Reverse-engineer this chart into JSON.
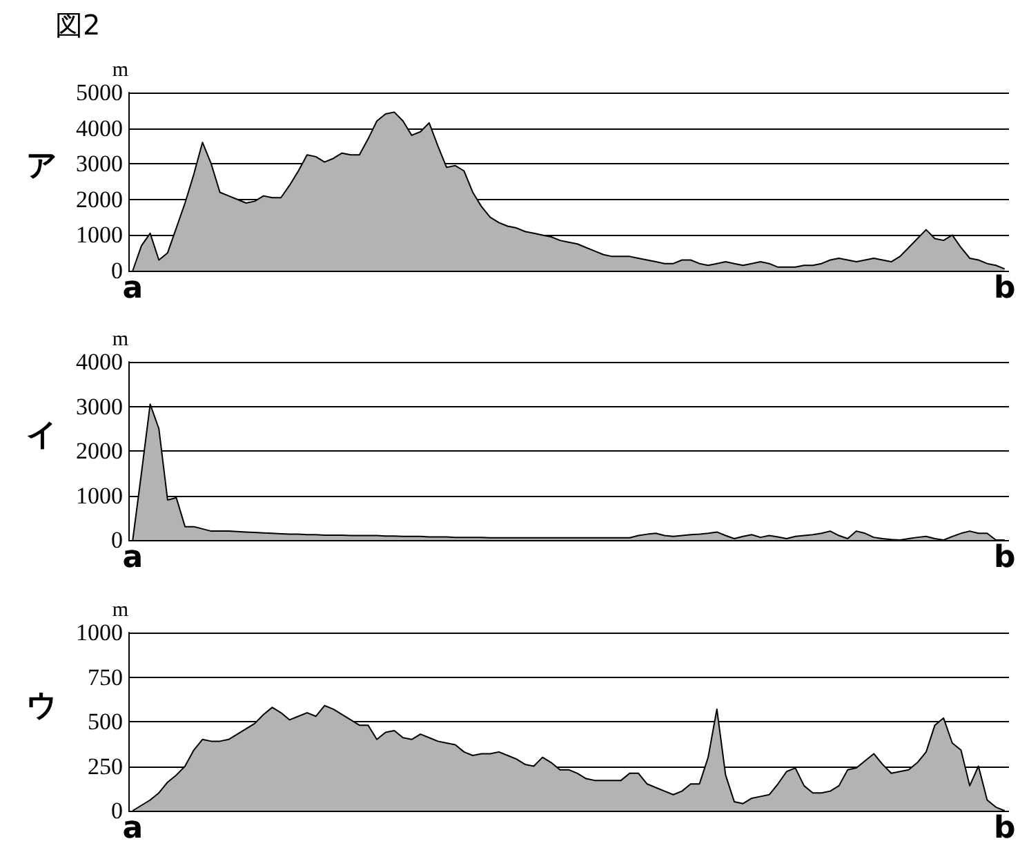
{
  "chart_data": [
    {
      "type": "area",
      "title": "ア",
      "ylabel": "m",
      "annotations": [
        "図2"
      ],
      "color": "#b3b3b3",
      "grid": "y",
      "categories": [
        "a",
        null,
        null,
        null,
        null,
        null,
        null,
        null,
        null,
        null,
        null,
        null,
        null,
        null,
        null,
        null,
        null,
        null,
        null,
        null,
        null,
        null,
        null,
        null,
        null,
        null,
        null,
        null,
        null,
        null,
        null,
        null,
        null,
        null,
        null,
        null,
        null,
        null,
        null,
        null,
        null,
        null,
        null,
        null,
        null,
        null,
        null,
        null,
        null,
        null,
        null,
        null,
        null,
        null,
        null,
        null,
        null,
        null,
        null,
        null,
        null,
        null,
        null,
        null,
        null,
        null,
        null,
        null,
        null,
        null,
        null,
        null,
        null,
        null,
        null,
        null,
        null,
        null,
        null,
        null,
        null,
        null,
        null,
        null,
        null,
        null,
        null,
        null,
        null,
        null,
        null,
        null,
        null,
        null,
        null,
        null,
        null,
        null,
        null,
        null,
        "b"
      ],
      "ylim": [
        0,
        5000
      ],
      "yticks": [
        0,
        1000,
        2000,
        3000,
        4000,
        5000
      ],
      "values": [
        0,
        700,
        1050,
        300,
        500,
        1200,
        1900,
        2700,
        3600,
        3000,
        2200,
        2100,
        2000,
        1900,
        1950,
        2100,
        2050,
        2050,
        2400,
        2800,
        3250,
        3200,
        3050,
        3150,
        3300,
        3250,
        3250,
        3700,
        4200,
        4400,
        4450,
        4200,
        3800,
        3900,
        4150,
        3500,
        2900,
        2950,
        2800,
        2200,
        1800,
        1500,
        1350,
        1250,
        1200,
        1100,
        1050,
        1000,
        950,
        850,
        800,
        750,
        650,
        550,
        450,
        400,
        400,
        400,
        350,
        300,
        250,
        200,
        200,
        300,
        300,
        200,
        150,
        200,
        250,
        200,
        150,
        200,
        250,
        200,
        100,
        100,
        100,
        150,
        150,
        200,
        300,
        350,
        300,
        250,
        300,
        350,
        300,
        250,
        400,
        650,
        900,
        1150,
        900,
        850,
        1000,
        650,
        350,
        300,
        200,
        150,
        50
      ]
    },
    {
      "type": "area",
      "title": "イ",
      "ylabel": "m",
      "color": "#b3b3b3",
      "grid": "y",
      "categories": [
        "a",
        null,
        null,
        null,
        null,
        null,
        null,
        null,
        null,
        null,
        null,
        null,
        null,
        null,
        null,
        null,
        null,
        null,
        null,
        null,
        null,
        null,
        null,
        null,
        null,
        null,
        null,
        null,
        null,
        null,
        null,
        null,
        null,
        null,
        null,
        null,
        null,
        null,
        null,
        null,
        null,
        null,
        null,
        null,
        null,
        null,
        null,
        null,
        null,
        null,
        null,
        null,
        null,
        null,
        null,
        null,
        null,
        null,
        null,
        null,
        null,
        null,
        null,
        null,
        null,
        null,
        null,
        null,
        null,
        null,
        null,
        null,
        null,
        null,
        null,
        null,
        null,
        null,
        null,
        null,
        null,
        null,
        null,
        null,
        null,
        null,
        null,
        null,
        null,
        null,
        null,
        null,
        null,
        null,
        null,
        null,
        null,
        null,
        null,
        null,
        "b"
      ],
      "ylim": [
        0,
        4000
      ],
      "yticks": [
        0,
        1000,
        2000,
        3000,
        4000
      ],
      "values": [
        0,
        1500,
        3050,
        2500,
        900,
        950,
        300,
        300,
        250,
        200,
        200,
        200,
        190,
        180,
        170,
        160,
        150,
        140,
        130,
        130,
        120,
        120,
        110,
        110,
        110,
        100,
        100,
        100,
        100,
        90,
        90,
        80,
        80,
        80,
        70,
        70,
        70,
        60,
        60,
        60,
        60,
        50,
        50,
        50,
        50,
        50,
        50,
        50,
        50,
        50,
        50,
        50,
        50,
        50,
        50,
        50,
        50,
        50,
        100,
        130,
        150,
        100,
        80,
        100,
        120,
        130,
        150,
        180,
        100,
        30,
        80,
        120,
        60,
        100,
        70,
        30,
        80,
        100,
        120,
        150,
        200,
        100,
        30,
        200,
        150,
        60,
        30,
        10,
        0,
        30,
        60,
        80,
        30,
        0,
        80,
        150,
        200,
        150,
        150,
        0,
        0
      ]
    },
    {
      "type": "area",
      "title": "ウ",
      "ylabel": "m",
      "color": "#b3b3b3",
      "grid": "y",
      "categories": [
        "a",
        null,
        null,
        null,
        null,
        null,
        null,
        null,
        null,
        null,
        null,
        null,
        null,
        null,
        null,
        null,
        null,
        null,
        null,
        null,
        null,
        null,
        null,
        null,
        null,
        null,
        null,
        null,
        null,
        null,
        null,
        null,
        null,
        null,
        null,
        null,
        null,
        null,
        null,
        null,
        null,
        null,
        null,
        null,
        null,
        null,
        null,
        null,
        null,
        null,
        null,
        null,
        null,
        null,
        null,
        null,
        null,
        null,
        null,
        null,
        null,
        null,
        null,
        null,
        null,
        null,
        null,
        null,
        null,
        null,
        null,
        null,
        null,
        null,
        null,
        null,
        null,
        null,
        null,
        null,
        null,
        null,
        null,
        null,
        null,
        null,
        null,
        null,
        null,
        null,
        null,
        null,
        null,
        null,
        null,
        null,
        null,
        null,
        null,
        null,
        "b"
      ],
      "ylim": [
        0,
        1000
      ],
      "yticks": [
        0,
        250,
        500,
        750,
        1000
      ],
      "values": [
        0,
        30,
        60,
        100,
        160,
        200,
        250,
        340,
        400,
        390,
        390,
        400,
        430,
        460,
        490,
        540,
        580,
        550,
        510,
        530,
        550,
        530,
        590,
        570,
        540,
        510,
        480,
        480,
        400,
        440,
        450,
        410,
        400,
        430,
        410,
        390,
        380,
        370,
        330,
        310,
        320,
        320,
        330,
        310,
        290,
        260,
        250,
        300,
        270,
        230,
        230,
        210,
        180,
        170,
        170,
        170,
        170,
        210,
        210,
        150,
        130,
        110,
        90,
        110,
        150,
        150,
        300,
        570,
        200,
        50,
        40,
        70,
        80,
        90,
        150,
        220,
        240,
        140,
        100,
        100,
        110,
        140,
        230,
        240,
        280,
        320,
        260,
        210,
        220,
        230,
        270,
        330,
        480,
        520,
        380,
        340,
        140,
        250,
        60,
        20,
        0
      ]
    }
  ]
}
